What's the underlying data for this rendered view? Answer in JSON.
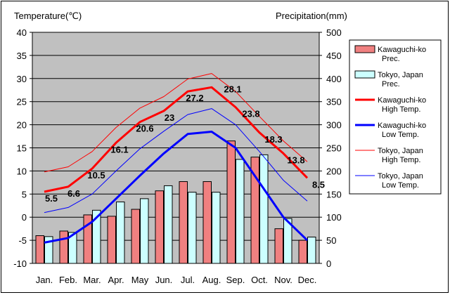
{
  "chart_data": {
    "type": "bar",
    "categories": [
      "Jan.",
      "Feb.",
      "Mar.",
      "Apr.",
      "May",
      "Jun.",
      "Jul.",
      "Aug.",
      "Sep.",
      "Oct.",
      "Nov.",
      "Dec."
    ],
    "ylabel_left": "Temperature(℃)",
    "ylabel_right": "Precipitation(mm)",
    "ylim_left": [
      -10,
      40
    ],
    "ylim_right": [
      0,
      500
    ],
    "yticks_left": [
      -10,
      -5,
      0,
      5,
      10,
      15,
      20,
      25,
      30,
      35,
      40
    ],
    "yticks_right": [
      0,
      50,
      100,
      150,
      200,
      250,
      300,
      350,
      400,
      450,
      500
    ],
    "grid": true,
    "legend_position": "right",
    "bar_series": [
      {
        "name": "Kawaguchi-ko\nPrec.",
        "color": "#f08080",
        "axis": "right",
        "values": [
          60,
          70,
          105,
          102,
          117,
          157,
          177,
          177,
          265,
          230,
          75,
          50
        ]
      },
      {
        "name": "Tokyo, Japan\nPrec.",
        "color": "#ccffff",
        "axis": "right",
        "values": [
          58,
          67,
          115,
          133,
          140,
          168,
          154,
          154,
          225,
          235,
          97,
          57
        ]
      }
    ],
    "line_series": [
      {
        "name": "Kawaguchi-ko\nHigh Temp.",
        "color": "#ff0000",
        "width": 3,
        "axis": "left",
        "values": [
          5.5,
          6.6,
          10.5,
          16.1,
          20.6,
          23.0,
          27.2,
          28.1,
          23.8,
          18.3,
          13.8,
          8.5
        ],
        "labels": [
          "5.5",
          "6.6",
          "10.5",
          "16.1",
          "20.6",
          "23",
          "27.2",
          "28.1",
          "23.8",
          "18.3",
          "13.8",
          "8.5"
        ]
      },
      {
        "name": "Kawaguchi-ko\nLow Temp.",
        "color": "#0000ff",
        "width": 3,
        "axis": "left",
        "values": [
          -5.5,
          -4.5,
          -1.0,
          4.0,
          9.0,
          13.8,
          18.0,
          18.5,
          15.0,
          7.5,
          0.0,
          -5.0
        ]
      },
      {
        "name": "Tokyo, Japan\nHigh Temp.",
        "color": "#ff0000",
        "width": 1,
        "axis": "left",
        "values": [
          9.8,
          10.9,
          14.2,
          19.4,
          23.6,
          26.1,
          29.9,
          31.1,
          27.2,
          21.8,
          16.5,
          12.0
        ]
      },
      {
        "name": "Tokyo, Japan\nLow Temp.",
        "color": "#0000ff",
        "width": 1,
        "axis": "left",
        "values": [
          1.0,
          2.1,
          5.0,
          10.0,
          14.8,
          18.6,
          22.2,
          23.5,
          20.0,
          14.2,
          8.0,
          3.5
        ]
      }
    ]
  }
}
